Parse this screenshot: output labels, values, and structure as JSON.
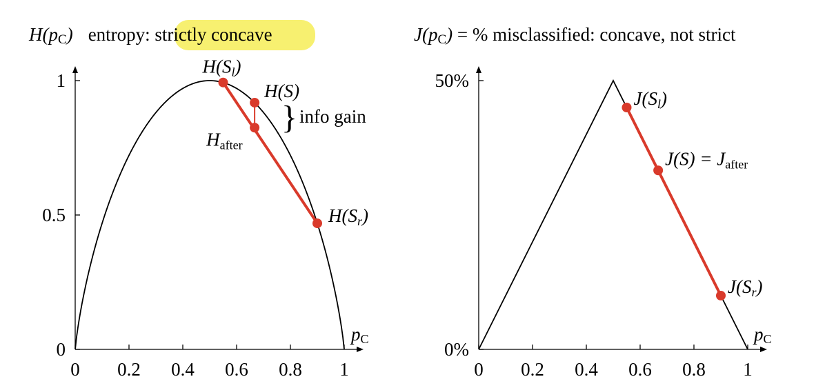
{
  "chart_data": [
    {
      "type": "line",
      "title_func": "H(p",
      "title_sub": "C",
      "title_close": ")",
      "title_prefix": "entropy: ",
      "title_highlight": "strictly concave",
      "xlabel_main": "p",
      "xlabel_sub": "C",
      "xlim": [
        0,
        1
      ],
      "ylim": [
        0,
        1
      ],
      "x_ticks": [
        {
          "value": 0,
          "label": "0"
        },
        {
          "value": 0.2,
          "label": "0.2"
        },
        {
          "value": 0.4,
          "label": "0.4"
        },
        {
          "value": 0.6,
          "label": "0.6"
        },
        {
          "value": 0.8,
          "label": "0.8"
        },
        {
          "value": 1,
          "label": "1"
        }
      ],
      "y_ticks": [
        {
          "value": 0,
          "label": "0"
        },
        {
          "value": 0.5,
          "label": "0.5"
        },
        {
          "value": 1,
          "label": "1"
        }
      ],
      "curve": "binary-entropy",
      "points": [
        {
          "id": "sl",
          "x": 0.55,
          "y": 0.993,
          "label_main": "H(S",
          "label_sub": "l",
          "label_close": ")"
        },
        {
          "id": "s",
          "x": 0.667,
          "y": 0.918,
          "label_main": "H(S)",
          "label_sub": "",
          "label_close": ""
        },
        {
          "id": "after",
          "x": 0.667,
          "y": 0.825,
          "label_main": "H",
          "label_sub": "after",
          "label_close": ""
        },
        {
          "id": "sr",
          "x": 0.9,
          "y": 0.469,
          "label_main": "H(S",
          "label_sub": "r",
          "label_close": ")"
        }
      ],
      "annotation": "info gain",
      "brace": "}"
    },
    {
      "type": "line",
      "title_func": "J(p",
      "title_sub": "C",
      "title_close": ")",
      "title_rest": " = % misclassified: concave, not strict",
      "xlabel_main": "p",
      "xlabel_sub": "C",
      "xlim": [
        0,
        1
      ],
      "ylim": [
        0,
        0.5
      ],
      "x_ticks": [
        {
          "value": 0,
          "label": "0"
        },
        {
          "value": 0.2,
          "label": "0.2"
        },
        {
          "value": 0.4,
          "label": "0.4"
        },
        {
          "value": 0.6,
          "label": "0.6"
        },
        {
          "value": 0.8,
          "label": "0.8"
        },
        {
          "value": 1,
          "label": "1"
        }
      ],
      "y_ticks": [
        {
          "value": 0,
          "label": "0%"
        },
        {
          "value": 0.5,
          "label": "50%"
        }
      ],
      "curve": "misclassification",
      "points": [
        {
          "id": "sl",
          "x": 0.55,
          "y": 0.45,
          "label_main": "J(S",
          "label_sub": "l",
          "label_close": ")"
        },
        {
          "id": "s",
          "x": 0.667,
          "y": 0.333,
          "label_main": "J(S) = J",
          "label_sub": "after",
          "label_close": ""
        },
        {
          "id": "sr",
          "x": 0.9,
          "y": 0.1,
          "label_main": "J(S",
          "label_sub": "r",
          "label_close": ")"
        }
      ]
    }
  ]
}
